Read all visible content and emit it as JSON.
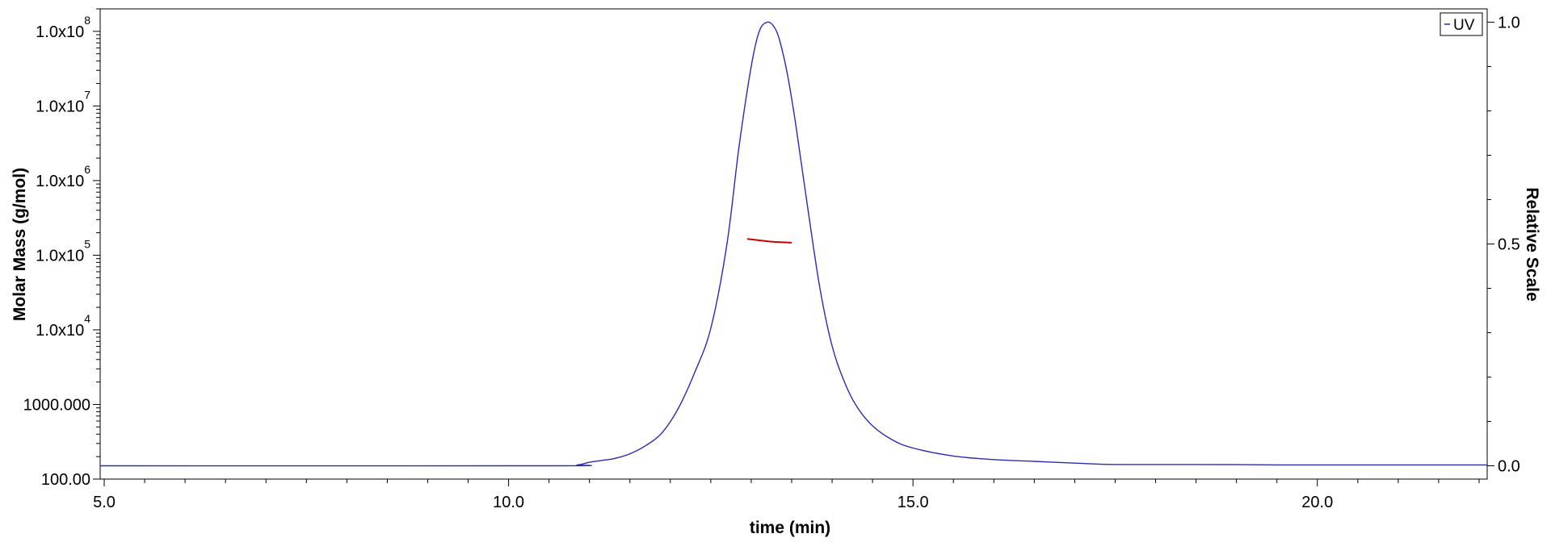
{
  "chart_data": {
    "type": "line",
    "xlabel": "time (min)",
    "ylabel_left": "Molar Mass (g/mol)",
    "ylabel_right": "Relative Scale",
    "xlim": [
      4.95,
      22.1
    ],
    "x_ticks": [
      5.0,
      10.0,
      15.0,
      20.0
    ],
    "x_tick_labels": [
      "5.0",
      "10.0",
      "15.0",
      "20.0"
    ],
    "y_left_scale": "log",
    "y_left_lim": [
      100,
      200000000
    ],
    "y_left_ticks": [
      {
        "value": 100,
        "base": "100.00",
        "exp": ""
      },
      {
        "value": 1000,
        "base": "1000.000",
        "exp": ""
      },
      {
        "value": 10000,
        "base": "1.0x10",
        "exp": "4"
      },
      {
        "value": 100000,
        "base": "1.0x10",
        "exp": "5"
      },
      {
        "value": 1000000,
        "base": "1.0x10",
        "exp": "6"
      },
      {
        "value": 10000000,
        "base": "1.0x10",
        "exp": "7"
      },
      {
        "value": 100000000,
        "base": "1.0x10",
        "exp": "8"
      }
    ],
    "y_right_lim": [
      -0.03,
      1.03
    ],
    "y_right_ticks": [
      0.0,
      0.5,
      1.0
    ],
    "y_right_tick_labels": [
      "0.0",
      "0.5",
      "1.0"
    ],
    "grid": false,
    "legend": {
      "position": "top-right",
      "entries": [
        "UV"
      ]
    },
    "series": [
      {
        "name": "UV",
        "axis": "right",
        "color": "#2b2bb0",
        "x": [
          4.95,
          10.5,
          10.85,
          11.0,
          11.15,
          11.3,
          11.5,
          11.7,
          11.9,
          12.1,
          12.3,
          12.5,
          12.7,
          12.85,
          13.0,
          13.1,
          13.2,
          13.28,
          13.35,
          13.45,
          13.55,
          13.7,
          13.85,
          14.0,
          14.15,
          14.3,
          14.5,
          14.75,
          15.0,
          15.5,
          16.0,
          16.5,
          17.0,
          17.5,
          18.5,
          19.5,
          20.5,
          21.5,
          22.1
        ],
        "y": [
          0.0,
          0.0,
          0.002,
          0.008,
          0.012,
          0.016,
          0.027,
          0.046,
          0.075,
          0.13,
          0.21,
          0.31,
          0.5,
          0.72,
          0.9,
          0.98,
          1.0,
          0.99,
          0.96,
          0.88,
          0.77,
          0.58,
          0.4,
          0.27,
          0.19,
          0.135,
          0.09,
          0.058,
          0.04,
          0.022,
          0.014,
          0.01,
          0.006,
          0.003,
          0.003,
          0.002,
          0.002,
          0.002,
          0.002
        ]
      },
      {
        "name": "",
        "axis": "left",
        "color": "#cc0000",
        "x": [
          12.95,
          13.1,
          13.25,
          13.4,
          13.5
        ],
        "y": [
          165000,
          158000,
          152000,
          149000,
          147000
        ]
      }
    ]
  }
}
